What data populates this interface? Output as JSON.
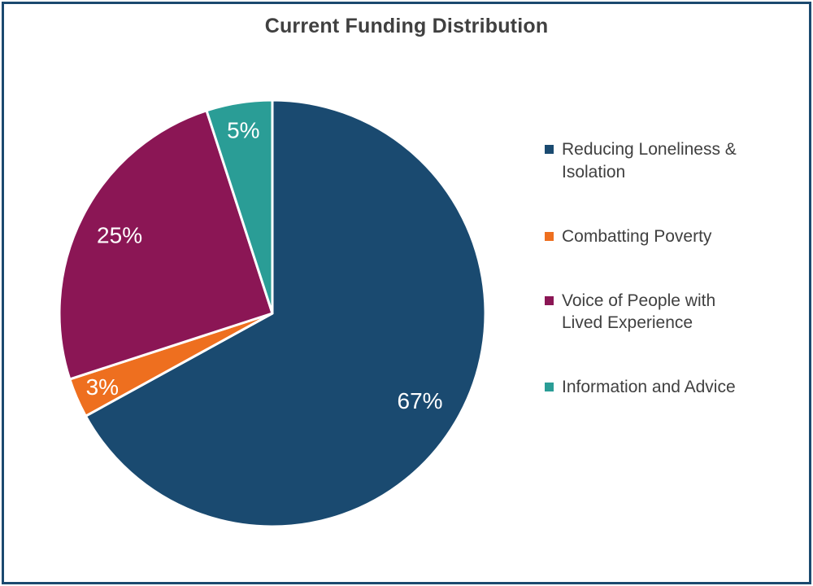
{
  "chart_data": {
    "type": "pie",
    "title": "Current Funding Distribution",
    "slices": [
      {
        "label": "Reducing Loneliness &\nIsolation",
        "value": 67,
        "color": "#1A4A70"
      },
      {
        "label": "Combatting Poverty",
        "value": 3,
        "color": "#EE6F1F"
      },
      {
        "label": "Voice of People with\nLived Experience",
        "value": 25,
        "color": "#8B1655"
      },
      {
        "label": "Information and Advice",
        "value": 5,
        "color": "#2A9D96"
      }
    ],
    "data_labels": [
      "67%",
      "3%",
      "25%",
      "5%"
    ],
    "data_label_format": "percent",
    "data_label_color": "#FFFFFF",
    "slice_border_color": "#FFFFFF",
    "start_angle_deg": 0,
    "direction": "clockwise",
    "legend_position": "right",
    "title_color": "#404040",
    "legend_text_color": "#404040",
    "frame_border_color": "#1B4A6F"
  }
}
